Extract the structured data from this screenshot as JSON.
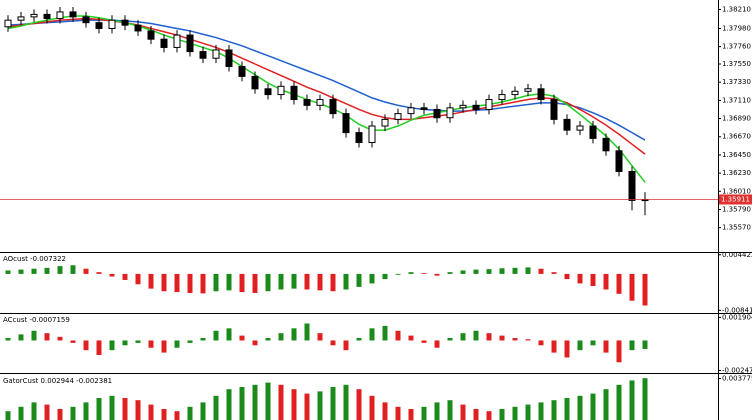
{
  "chart_data": [
    {
      "type": "candlestick",
      "ylim": [
        1.353,
        1.383
      ],
      "yticks": [
        {
          "value": 1.3821,
          "label": "1.38210"
        },
        {
          "value": 1.3798,
          "label": "1.37980"
        },
        {
          "value": 1.3776,
          "label": "1.37760"
        },
        {
          "value": 1.3755,
          "label": "1.37550"
        },
        {
          "value": 1.3733,
          "label": "1.37330"
        },
        {
          "value": 1.3711,
          "label": "1.37110"
        },
        {
          "value": 1.3689,
          "label": "1.36890"
        },
        {
          "value": 1.3667,
          "label": "1.36670"
        },
        {
          "value": 1.3645,
          "label": "1.36450"
        },
        {
          "value": 1.3623,
          "label": "1.36230"
        },
        {
          "value": 1.3601,
          "label": "1.36010"
        },
        {
          "value": 1.3579,
          "label": "1.35790"
        },
        {
          "value": 1.3557,
          "label": "1.35570"
        }
      ],
      "current_price": {
        "value": 1.35911,
        "color": "#e03030"
      },
      "open": [
        1.38,
        1.3808,
        1.3812,
        1.3815,
        1.381,
        1.3818,
        1.3812,
        1.3805,
        1.3798,
        1.3808,
        1.3802,
        1.3795,
        1.3785,
        1.3775,
        1.379,
        1.377,
        1.3762,
        1.3772,
        1.3752,
        1.374,
        1.3725,
        1.3718,
        1.3728,
        1.3712,
        1.3705,
        1.3712,
        1.3695,
        1.3672,
        1.366,
        1.368,
        1.3688,
        1.3695,
        1.3702,
        1.37,
        1.369,
        1.3702,
        1.3705,
        1.37,
        1.3712,
        1.3718,
        1.3722,
        1.3725,
        1.3712,
        1.3688,
        1.3675,
        1.368,
        1.3665,
        1.365,
        1.3625,
        1.359
      ],
      "high": [
        1.3814,
        1.3818,
        1.3821,
        1.3821,
        1.3824,
        1.3824,
        1.3818,
        1.3811,
        1.3814,
        1.3814,
        1.3808,
        1.3801,
        1.3791,
        1.3796,
        1.3796,
        1.3776,
        1.3778,
        1.3778,
        1.3758,
        1.3746,
        1.3731,
        1.3734,
        1.3734,
        1.3718,
        1.3718,
        1.3718,
        1.3701,
        1.3678,
        1.3686,
        1.3694,
        1.3701,
        1.3708,
        1.3708,
        1.3706,
        1.3708,
        1.3711,
        1.3711,
        1.3718,
        1.3724,
        1.3728,
        1.3731,
        1.3731,
        1.3718,
        1.3694,
        1.3686,
        1.3686,
        1.3671,
        1.3656,
        1.3631,
        1.36
      ],
      "low": [
        1.3794,
        1.3802,
        1.3806,
        1.3804,
        1.3804,
        1.3806,
        1.3799,
        1.3792,
        1.3792,
        1.3796,
        1.3789,
        1.3779,
        1.3769,
        1.3769,
        1.3764,
        1.3756,
        1.3756,
        1.3746,
        1.3734,
        1.3719,
        1.3712,
        1.3712,
        1.3706,
        1.3699,
        1.3699,
        1.3689,
        1.3666,
        1.3654,
        1.3654,
        1.3674,
        1.3682,
        1.3689,
        1.3694,
        1.3684,
        1.3684,
        1.3696,
        1.3694,
        1.3694,
        1.3706,
        1.3712,
        1.3716,
        1.3706,
        1.3682,
        1.3669,
        1.3669,
        1.3659,
        1.3644,
        1.3619,
        1.3578,
        1.3572
      ],
      "close": [
        1.3808,
        1.3812,
        1.3815,
        1.381,
        1.3818,
        1.3812,
        1.3805,
        1.3798,
        1.3808,
        1.3802,
        1.3795,
        1.3785,
        1.3775,
        1.379,
        1.377,
        1.3762,
        1.3772,
        1.3752,
        1.374,
        1.3725,
        1.3718,
        1.3728,
        1.3712,
        1.3705,
        1.3712,
        1.3695,
        1.3672,
        1.366,
        1.368,
        1.3688,
        1.3695,
        1.3702,
        1.37,
        1.369,
        1.3702,
        1.3705,
        1.37,
        1.3712,
        1.3718,
        1.3722,
        1.3725,
        1.3712,
        1.3688,
        1.3675,
        1.368,
        1.3665,
        1.365,
        1.3625,
        1.359,
        1.3591
      ],
      "series": [
        {
          "color": "#1f5fd0",
          "values": [
            1.3802,
            1.3803,
            1.3804,
            1.3805,
            1.3806,
            1.3807,
            1.3808,
            1.3808,
            1.3808,
            1.3807,
            1.3806,
            1.3804,
            1.3801,
            1.3798,
            1.3795,
            1.3791,
            1.3787,
            1.3782,
            1.3777,
            1.3771,
            1.3765,
            1.3759,
            1.3753,
            1.3747,
            1.3741,
            1.3735,
            1.3728,
            1.3721,
            1.3714,
            1.3709,
            1.3705,
            1.3702,
            1.37,
            1.3699,
            1.3698,
            1.3698,
            1.3699,
            1.37,
            1.3702,
            1.3704,
            1.3706,
            1.3708,
            1.3708,
            1.3706,
            1.3702,
            1.3696,
            1.3689,
            1.3681,
            1.3672,
            1.3663
          ]
        },
        {
          "color": "#e02020",
          "values": [
            1.38,
            1.3802,
            1.3804,
            1.3806,
            1.3808,
            1.3809,
            1.381,
            1.3809,
            1.3807,
            1.3805,
            1.3802,
            1.3798,
            1.3794,
            1.379,
            1.3785,
            1.378,
            1.3775,
            1.3769,
            1.3762,
            1.3755,
            1.3748,
            1.3741,
            1.3734,
            1.3727,
            1.3721,
            1.3714,
            1.3707,
            1.37,
            1.3694,
            1.369,
            1.3688,
            1.3688,
            1.369,
            1.3692,
            1.3694,
            1.3697,
            1.37,
            1.3703,
            1.3706,
            1.3709,
            1.3712,
            1.3714,
            1.3713,
            1.3708,
            1.37,
            1.3691,
            1.3681,
            1.367,
            1.3658,
            1.3646
          ]
        },
        {
          "color": "#20d020",
          "values": [
            1.3798,
            1.3801,
            1.3805,
            1.3808,
            1.3811,
            1.3813,
            1.3813,
            1.3811,
            1.3808,
            1.3805,
            1.3801,
            1.3796,
            1.379,
            1.3785,
            1.378,
            1.3775,
            1.377,
            1.3762,
            1.3752,
            1.3742,
            1.3732,
            1.3724,
            1.3718,
            1.3712,
            1.3707,
            1.3701,
            1.3693,
            1.3682,
            1.3675,
            1.3675,
            1.368,
            1.3687,
            1.3693,
            1.3696,
            1.3699,
            1.3702,
            1.3704,
            1.3706,
            1.3709,
            1.3713,
            1.3717,
            1.3719,
            1.3716,
            1.3706,
            1.3694,
            1.3681,
            1.3668,
            1.3652,
            1.3632,
            1.3612
          ]
        }
      ]
    },
    {
      "type": "bar",
      "title": "AOcust -0.007322",
      "ylim": [
        -0.0088,
        0.0046
      ],
      "yticks": [
        0.004422,
        -0.008419
      ],
      "up_color": "#1a8a1a",
      "down_color": "#e02020",
      "values": [
        0.0008,
        0.001,
        0.0012,
        0.0014,
        0.0018,
        0.002,
        0.0012,
        0.0004,
        -0.0006,
        -0.0014,
        -0.0024,
        -0.0034,
        -0.004,
        -0.0042,
        -0.0044,
        -0.0045,
        -0.004,
        -0.0038,
        -0.0042,
        -0.0044,
        -0.004,
        -0.0036,
        -0.0034,
        -0.0036,
        -0.0038,
        -0.004,
        -0.0036,
        -0.003,
        -0.0022,
        -0.0012,
        -0.0002,
        0.0004,
        0.0002,
        -0.0004,
        0.0004,
        0.0008,
        0.001,
        0.0011,
        0.0013,
        0.0014,
        0.0015,
        0.0012,
        0.0004,
        -0.0012,
        -0.0022,
        -0.0028,
        -0.0036,
        -0.0046,
        -0.0062,
        -0.0073
      ]
    },
    {
      "type": "bar",
      "title": "ACcust -0.0007159",
      "ylim": [
        -0.0026,
        0.0021
      ],
      "yticks": [
        0.0019047,
        -0.0024711
      ],
      "up_color": "#1a8a1a",
      "down_color": "#e02020",
      "values": [
        0.0002,
        0.0005,
        0.0008,
        0.0006,
        0.0003,
        -0.0002,
        -0.0008,
        -0.0012,
        -0.0008,
        -0.0004,
        -0.0002,
        -0.0006,
        -0.001,
        -0.0006,
        -0.0002,
        0.0002,
        0.0008,
        0.001,
        0.0004,
        -0.0004,
        0.0002,
        0.0006,
        0.001,
        0.0014,
        0.0006,
        -0.0004,
        -0.0008,
        0.0002,
        0.001,
        0.0012,
        0.0008,
        0.0004,
        -0.0002,
        -0.0006,
        0.0002,
        0.0006,
        0.0008,
        0.0006,
        0.0004,
        0.0002,
        0.0001,
        -0.0004,
        -0.001,
        -0.0014,
        -0.0008,
        -0.0004,
        -0.001,
        -0.0018,
        -0.0008,
        -0.0007
      ]
    },
    {
      "type": "bar",
      "title": "GatorCust 0.002944 -0.002381",
      "ylim": [
        0,
        0.004
      ],
      "yticks": [
        0.003775
      ],
      "up_color": "#1a8a1a",
      "down_color": "#e02020",
      "values": [
        0.0008,
        0.0012,
        0.0016,
        0.0014,
        0.001,
        0.0012,
        0.0016,
        0.002,
        0.0022,
        0.002,
        0.0018,
        0.0014,
        0.001,
        0.0008,
        0.0012,
        0.0016,
        0.0022,
        0.0028,
        0.003,
        0.0032,
        0.0034,
        0.0032,
        0.0028,
        0.0024,
        0.0026,
        0.003,
        0.0032,
        0.0028,
        0.0022,
        0.0016,
        0.0012,
        0.001,
        0.0012,
        0.0016,
        0.0018,
        0.0014,
        0.001,
        0.0008,
        0.001,
        0.0012,
        0.0014,
        0.0016,
        0.0018,
        0.002,
        0.0022,
        0.0024,
        0.0028,
        0.0032,
        0.0036,
        0.0038
      ]
    }
  ]
}
